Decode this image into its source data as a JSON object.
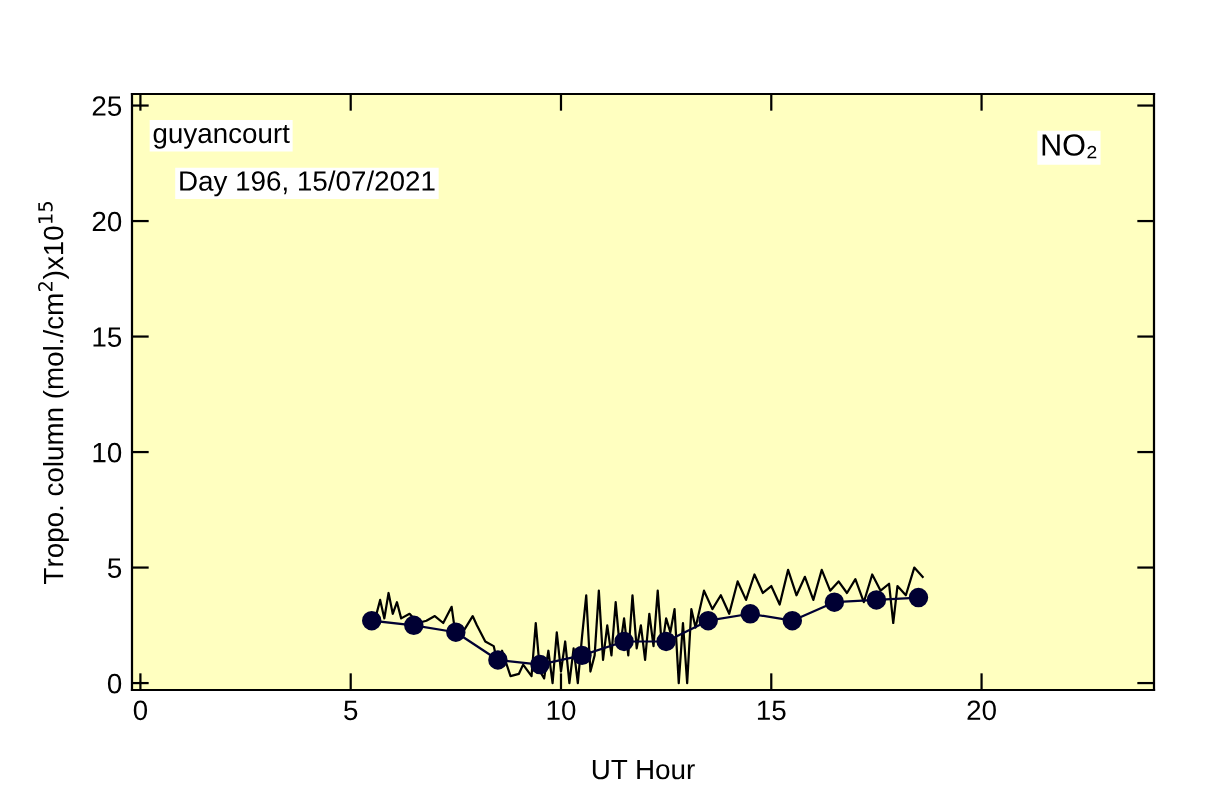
{
  "chart_data": {
    "type": "line",
    "xlabel": "UT Hour",
    "ylabel": "Tropo. column (mol./cm$^{2}$)x10$^{15}$",
    "annotations": [
      "guyancourt",
      "Day 196, 15/07/2021",
      "NO₂"
    ],
    "xlim": [
      -0.2,
      24.1
    ],
    "ylim": [
      -0.3,
      25.5
    ],
    "xticks": [
      0,
      5,
      10,
      15,
      20
    ],
    "yticks": [
      0,
      5,
      10,
      15,
      20,
      25
    ],
    "grid": false,
    "legend": false,
    "series": [
      {
        "color": "#000000",
        "marker": "none",
        "x": [
          5.6,
          5.7,
          5.8,
          5.9,
          6.0,
          6.1,
          6.2,
          6.4,
          6.6,
          6.8,
          7.0,
          7.2,
          7.4,
          7.5,
          7.7,
          7.9,
          8.0,
          8.2,
          8.4,
          8.5,
          8.6,
          8.8,
          9.0,
          9.1,
          9.3,
          9.4,
          9.5,
          9.6,
          9.7,
          9.8,
          9.9,
          10.0,
          10.1,
          10.2,
          10.3,
          10.4,
          10.5,
          10.6,
          10.7,
          10.8,
          10.9,
          11.0,
          11.1,
          11.2,
          11.3,
          11.4,
          11.5,
          11.6,
          11.7,
          11.8,
          11.9,
          12.0,
          12.1,
          12.2,
          12.3,
          12.4,
          12.5,
          12.6,
          12.7,
          12.8,
          12.9,
          13.0,
          13.1,
          13.2,
          13.4,
          13.6,
          13.8,
          14.0,
          14.2,
          14.4,
          14.6,
          14.8,
          15.0,
          15.2,
          15.4,
          15.6,
          15.8,
          16.0,
          16.2,
          16.4,
          16.6,
          16.8,
          17.0,
          17.2,
          17.4,
          17.6,
          17.8,
          17.9,
          18.0,
          18.2,
          18.4,
          18.6
        ],
        "values": [
          2.9,
          3.6,
          2.8,
          3.9,
          3.0,
          3.5,
          2.8,
          3.0,
          2.6,
          2.7,
          2.9,
          2.6,
          3.3,
          2.0,
          2.3,
          2.9,
          2.5,
          1.8,
          1.6,
          0.8,
          1.4,
          0.3,
          0.4,
          0.8,
          0.3,
          2.6,
          0.5,
          0.2,
          1.4,
          0.0,
          2.2,
          0.5,
          1.8,
          0.0,
          1.5,
          0.0,
          2.0,
          3.8,
          0.5,
          1.2,
          4.0,
          1.0,
          2.5,
          1.2,
          3.5,
          1.5,
          2.8,
          1.2,
          3.8,
          1.5,
          2.5,
          1.0,
          3.0,
          1.6,
          4.0,
          1.5,
          2.8,
          2.2,
          3.2,
          0.0,
          2.6,
          0.0,
          3.2,
          2.4,
          4.0,
          3.2,
          3.8,
          3.0,
          4.4,
          3.6,
          4.7,
          3.9,
          4.2,
          3.4,
          4.9,
          3.8,
          4.6,
          3.6,
          4.9,
          4.0,
          4.4,
          3.9,
          4.5,
          3.5,
          4.7,
          4.0,
          4.3,
          2.6,
          4.2,
          3.8,
          5.0,
          4.6
        ]
      },
      {
        "color": "#000033",
        "marker": "circle",
        "x": [
          5.5,
          6.5,
          7.5,
          8.5,
          9.5,
          10.5,
          11.5,
          12.5,
          13.5,
          14.5,
          15.5,
          16.5,
          17.5,
          18.5
        ],
        "values": [
          2.7,
          2.5,
          2.2,
          1.0,
          0.8,
          1.2,
          1.8,
          1.8,
          2.7,
          3.0,
          2.7,
          3.5,
          3.6,
          3.7
        ]
      }
    ]
  }
}
